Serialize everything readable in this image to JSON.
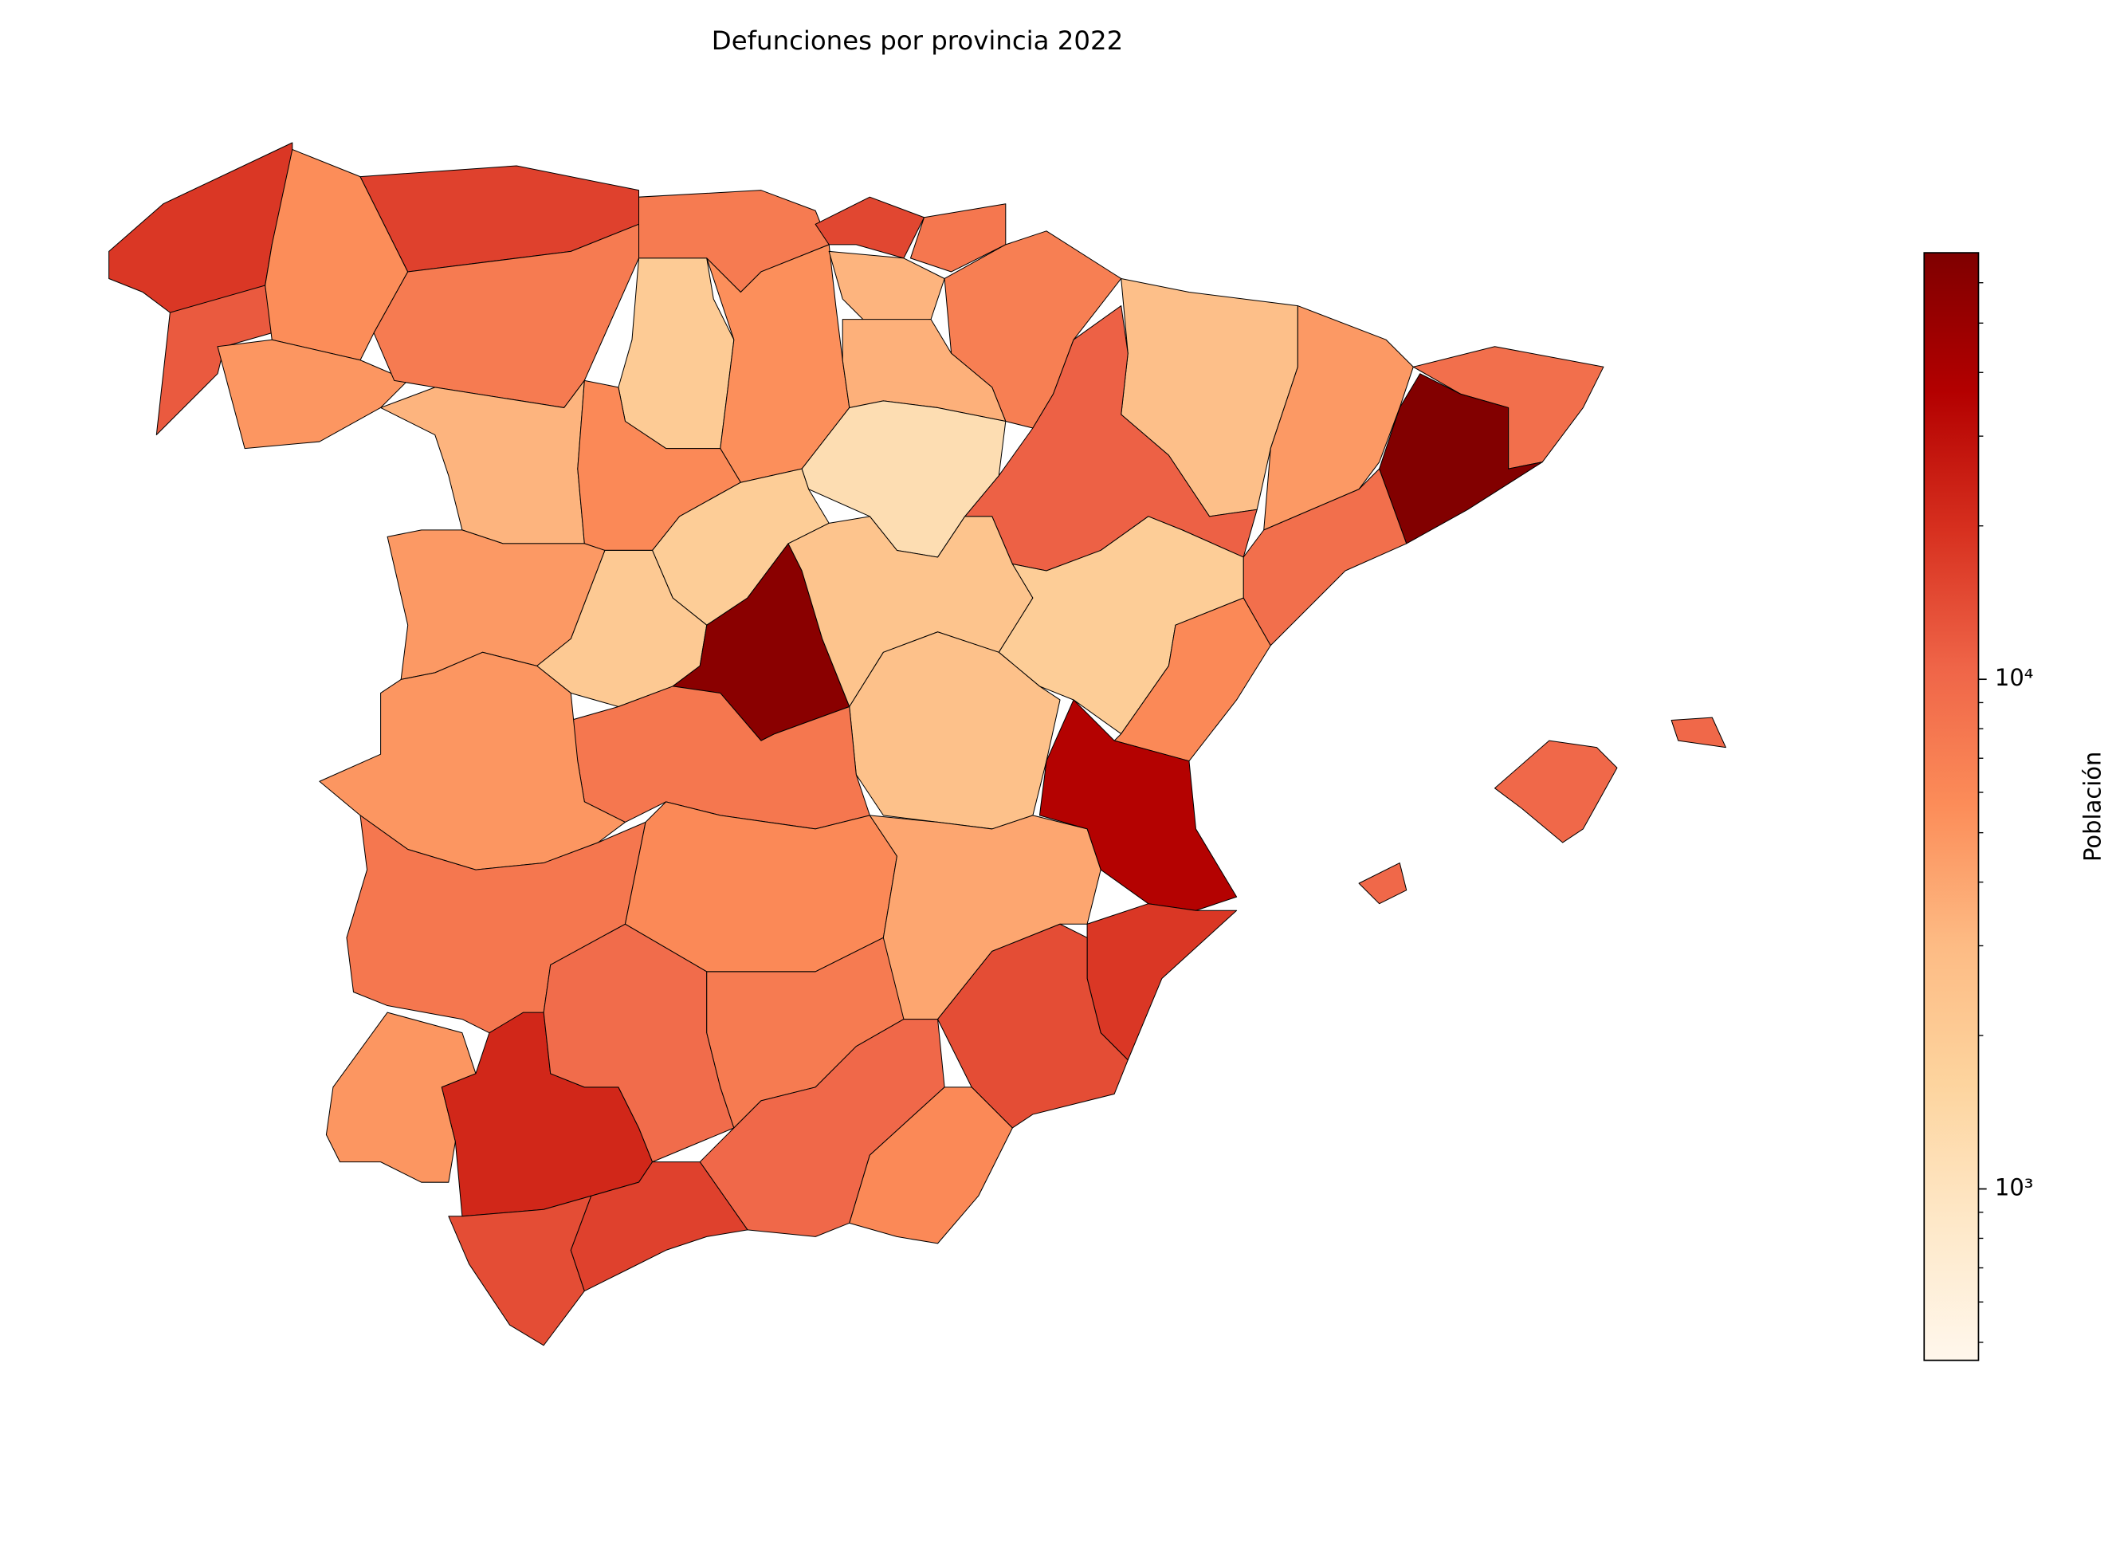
{
  "chart_data": {
    "type": "choropleth",
    "title": "Defunciones por provincia 2022",
    "values": [
      18000,
      12000,
      5600,
      5000,
      16000,
      7500,
      7500,
      3300,
      2000,
      5500,
      6000,
      15000,
      8000,
      3300,
      7000,
      3500,
      2700,
      11000,
      4800,
      9000,
      66000,
      9000,
      1200,
      1900,
      2100,
      4800,
      60000,
      2400,
      1900,
      6000,
      2600,
      36000,
      8000,
      5000,
      8000,
      6000,
      4000,
      18000,
      14000,
      5000,
      22000,
      9500,
      7500,
      10000,
      6000,
      14000,
      16000,
      10000
    ],
    "log_scale": true,
    "colormap": [
      "#fff7ec",
      "#fee8c8",
      "#fdd49e",
      "#fdbb84",
      "#fc8d59",
      "#ef6548",
      "#d7301f",
      "#b30000",
      "#7f0000"
    ],
    "edge_color": "#000000",
    "colorbar": {
      "label": "Población",
      "clim": [
        461,
        68700
      ],
      "ticks": [
        {
          "value": 1000,
          "label": "10³"
        },
        {
          "value": 10000,
          "label": "10⁴"
        }
      ],
      "minor_ticks": [
        500,
        600,
        700,
        800,
        900,
        2000,
        3000,
        4000,
        5000,
        6000,
        7000,
        8000,
        9000,
        20000,
        30000,
        40000,
        50000,
        60000
      ]
    }
  }
}
